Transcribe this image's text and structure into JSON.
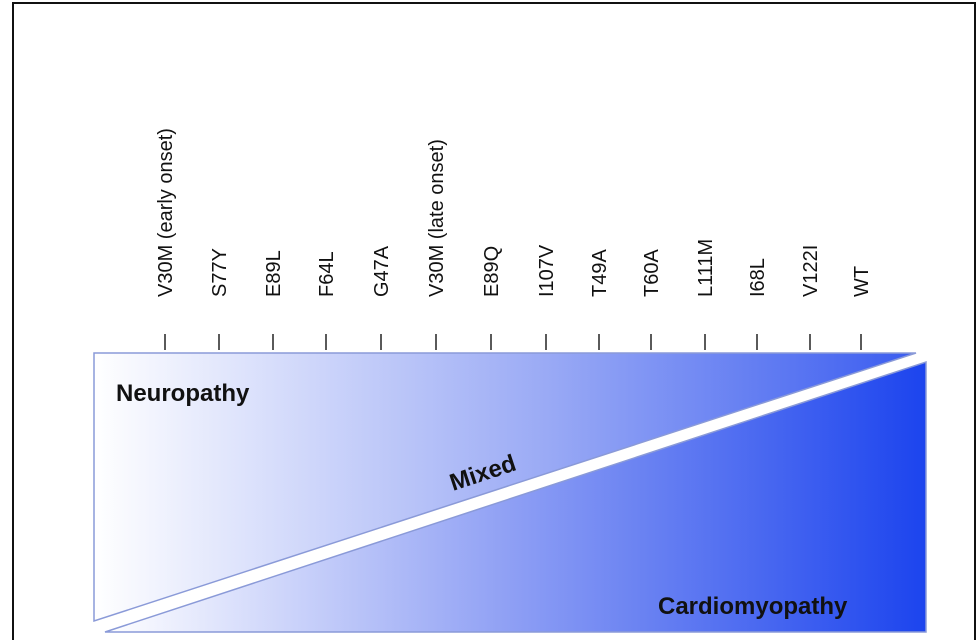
{
  "variants": [
    "V30M (early onset)",
    "S77Y",
    "E89L",
    "F64L",
    "G47A",
    "V30M (late onset)",
    "E89Q",
    "I107V",
    "T49A",
    "T60A",
    "L111M",
    "I68L",
    "V122I",
    "WT"
  ],
  "regions": {
    "neuropathy": "Neuropathy",
    "mixed": "Mixed",
    "cardiomyopathy": "Cardiomyopathy"
  },
  "colors": {
    "gradient_light": "#ffffff",
    "gradient_dark": "#1c44ee",
    "outline": "#8a9ad8",
    "text": "#111111"
  }
}
